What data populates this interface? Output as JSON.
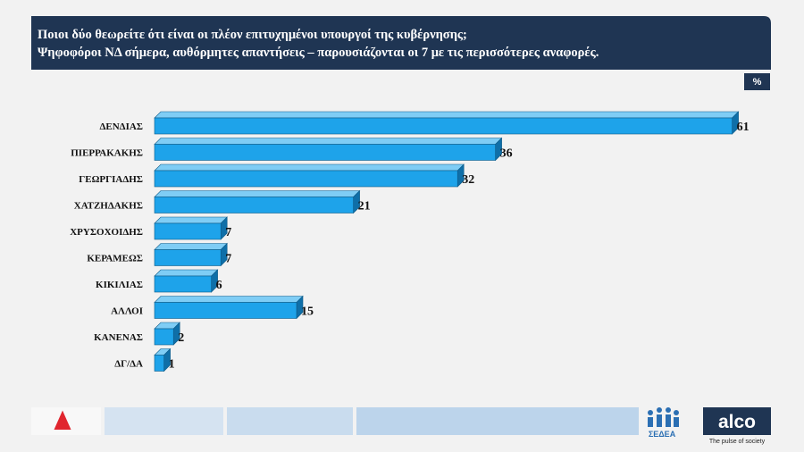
{
  "chart_data": {
    "type": "bar",
    "orientation": "horizontal",
    "title": "Ποιοι δύο θεωρείτε ότι είναι οι πλέον επιτυχημένοι υπουργοί της κυβέρνησης;",
    "subtitle": "Ψηφοφόροι ΝΔ σήμερα, αυθόρμητες απαντήσεις – παρουσιάζονται οι 7 με τις περισσότερες αναφορές.",
    "unit_label": "%",
    "categories": [
      "ΔΕΝΔΙΑΣ",
      "ΠΙΕΡΡΑΚΑΚΗΣ",
      "ΓΕΩΡΓΙΑΔΗΣ",
      "ΧΑΤΖΗΔΑΚΗΣ",
      "ΧΡΥΣΟΧΟΙΔΗΣ",
      "ΚΕΡΑΜΕΩΣ",
      "ΚΙΚΙΛΙΑΣ",
      "ΑΛΛΟΙ",
      "ΚΑΝΕΝΑΣ",
      "ΔΓ/ΔΑ"
    ],
    "values": [
      61,
      36,
      32,
      21,
      7,
      7,
      6,
      15,
      2,
      1
    ],
    "color": "#1ea3ea"
  },
  "footer": {
    "brand": "alco",
    "tagline": "The pulse of society",
    "partner": "ΣΕΔΕΑ"
  }
}
